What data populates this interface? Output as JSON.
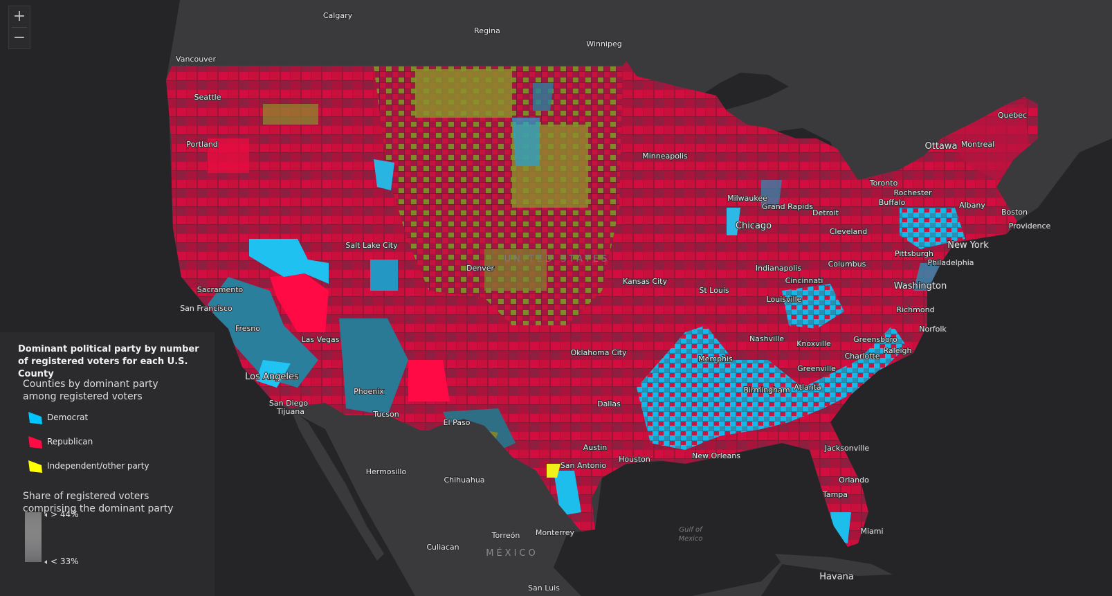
{
  "zoom": {
    "in_label": "+",
    "out_label": "−"
  },
  "legend": {
    "title": "Dominant political party by number of registered voters for each U.S. County",
    "subtitle": "Counties by dominant party among registered voters",
    "categories": [
      {
        "label": "Democrat",
        "color": "#00c5ff"
      },
      {
        "label": "Republican",
        "color": "#ff0a45"
      },
      {
        "label": "Independent/other party",
        "color": "#ffff00"
      }
    ],
    "share_title": "Share of registered voters comprising the dominant party",
    "share_high": "> 44%",
    "share_low": "< 33%"
  },
  "map": {
    "country_label": "UNITED STATES",
    "mexico_label": "MÉXICO",
    "gulf_label_1": "Gulf of",
    "gulf_label_2": "Mexico",
    "cities": [
      "Calgary",
      "Regina",
      "Winnipeg",
      "Vancouver",
      "Seattle",
      "Portland",
      "Quebec",
      "Ottawa",
      "Montreal",
      "Minneapolis",
      "Toronto",
      "Rochester",
      "Buffalo",
      "Albany",
      "Boston",
      "Providence",
      "Milwaukee",
      "Grand Rapids",
      "Detroit",
      "Chicago",
      "Cleveland",
      "New York",
      "Pittsburgh",
      "Philadelphia",
      "Salt Lake City",
      "Denver",
      "Sacramento",
      "San Francisco",
      "Fresno",
      "Kansas City",
      "Indianapolis",
      "Columbus",
      "Cincinnati",
      "Washington",
      "St Louis",
      "Louisville",
      "Richmond",
      "Norfolk",
      "Las Vegas",
      "Oklahoma City",
      "Nashville",
      "Knoxville",
      "Greensboro",
      "Charlotte",
      "Raleigh",
      "Memphis",
      "Greenville",
      "Los Angeles",
      "Birmingham",
      "Atlanta",
      "San Diego",
      "Tijuana",
      "Phoenix",
      "Dallas",
      "Tucson",
      "El Paso",
      "Austin",
      "Houston",
      "Jacksonville",
      "New Orleans",
      "San Antonio",
      "Hermosillo",
      "Chihuahua",
      "Orlando",
      "Tampa",
      "Miami",
      "Torreón",
      "Monterrey",
      "Culiacan",
      "Havana",
      "San Luis"
    ]
  }
}
